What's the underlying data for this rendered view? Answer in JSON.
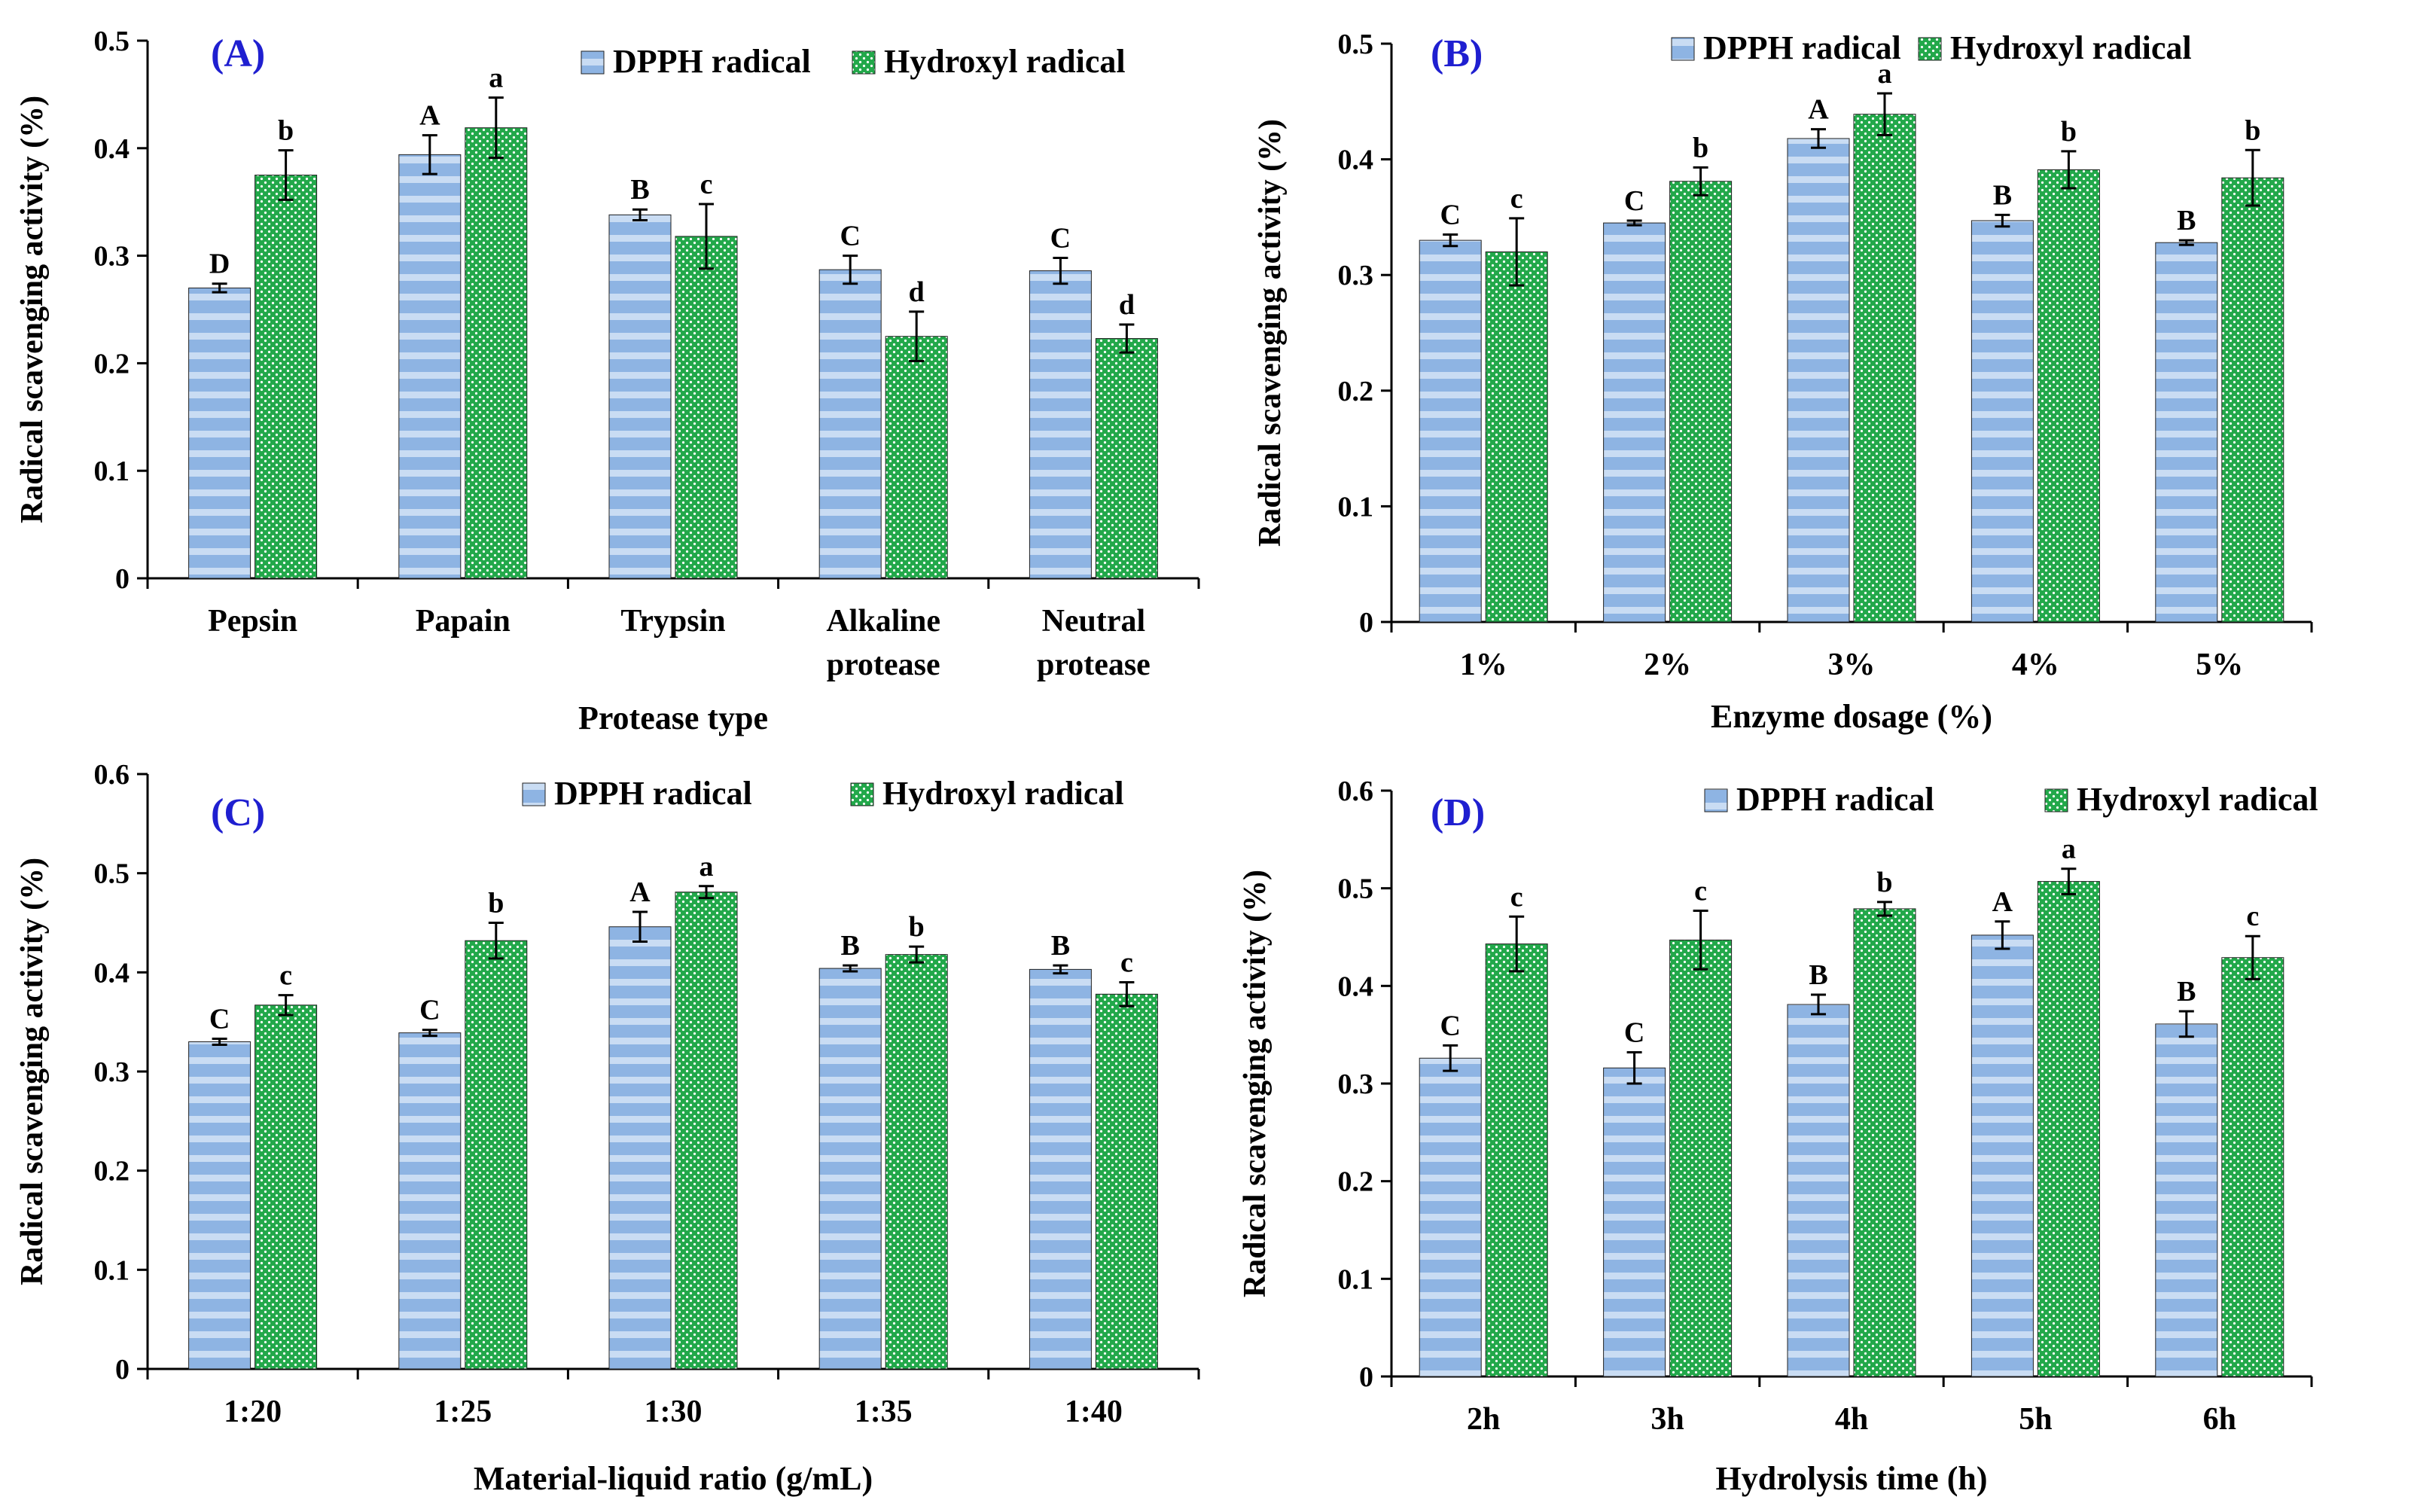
{
  "legend": {
    "dpph": "DPPH radical",
    "hydroxyl": "Hydroxyl radical"
  },
  "colors": {
    "dpph": "#8eb4e3",
    "dpph_stripe": "#c9dcf3",
    "hydroxyl": "#22a84a",
    "hydroxyl_dot": "#ffffff",
    "panel_label": "#1f1fd0"
  },
  "chart_data": [
    {
      "type": "bar",
      "panel": "(A)",
      "xlabel": "Protease type",
      "ylabel": "Radical scavenging activity (%)",
      "ylim": [
        0,
        0.5
      ],
      "ytick_step": 0.1,
      "categories": [
        [
          "Pepsin"
        ],
        [
          "Papain"
        ],
        [
          "Trypsin"
        ],
        [
          "Alkaline",
          "protease"
        ],
        [
          "Neutral",
          "protease"
        ]
      ],
      "series": [
        {
          "name": "DPPH radical",
          "values": [
            0.27,
            0.394,
            0.338,
            0.287,
            0.286
          ],
          "errors": [
            0.004,
            0.018,
            0.005,
            0.013,
            0.012
          ],
          "letters": [
            "D",
            "A",
            "B",
            "C",
            "C"
          ]
        },
        {
          "name": "Hydroxyl radical",
          "values": [
            0.375,
            0.419,
            0.318,
            0.225,
            0.223
          ],
          "errors": [
            0.023,
            0.028,
            0.03,
            0.023,
            0.013
          ],
          "letters": [
            "b",
            "a",
            "c",
            "d",
            "d"
          ]
        }
      ]
    },
    {
      "type": "bar",
      "panel": "(B)",
      "xlabel": "Enzyme dosage (%)",
      "ylabel": "Radical scavenging activity (%)",
      "ylim": [
        0,
        0.5
      ],
      "ytick_step": 0.1,
      "categories": [
        [
          "1%"
        ],
        [
          "2%"
        ],
        [
          "3%"
        ],
        [
          "4%"
        ],
        [
          "5%"
        ]
      ],
      "series": [
        {
          "name": "DPPH radical",
          "values": [
            0.33,
            0.345,
            0.418,
            0.347,
            0.328
          ],
          "errors": [
            0.005,
            0.002,
            0.008,
            0.005,
            0.002
          ],
          "letters": [
            "C",
            "C",
            "A",
            "B",
            "B"
          ]
        },
        {
          "name": "Hydroxyl radical",
          "values": [
            0.32,
            0.381,
            0.439,
            0.391,
            0.384
          ],
          "errors": [
            0.029,
            0.012,
            0.018,
            0.016,
            0.024
          ],
          "letters": [
            "c",
            "b",
            "a",
            "b",
            "b"
          ]
        }
      ]
    },
    {
      "type": "bar",
      "panel": "(C)",
      "xlabel": "Material-liquid ratio (g/mL)",
      "ylabel": "Radical scavenging activity (%)",
      "ylim": [
        0,
        0.6
      ],
      "ytick_step": 0.1,
      "categories": [
        [
          "1:20"
        ],
        [
          "1:25"
        ],
        [
          "1:30"
        ],
        [
          "1:35"
        ],
        [
          "1:40"
        ]
      ],
      "series": [
        {
          "name": "DPPH radical",
          "values": [
            0.33,
            0.339,
            0.446,
            0.404,
            0.403
          ],
          "errors": [
            0.003,
            0.003,
            0.015,
            0.003,
            0.004
          ],
          "letters": [
            "C",
            "C",
            "A",
            "B",
            "B"
          ]
        },
        {
          "name": "Hydroxyl radical",
          "values": [
            0.367,
            0.432,
            0.481,
            0.418,
            0.378
          ],
          "errors": [
            0.01,
            0.018,
            0.006,
            0.008,
            0.012
          ],
          "letters": [
            "c",
            "b",
            "a",
            "b",
            "c"
          ]
        }
      ]
    },
    {
      "type": "bar",
      "panel": "(D)",
      "xlabel": "Hydrolysis time (h)",
      "ylabel": "Radical scavenging activity (%)",
      "ylim": [
        0,
        0.6
      ],
      "ytick_step": 0.1,
      "categories": [
        [
          "2h"
        ],
        [
          "3h"
        ],
        [
          "4h"
        ],
        [
          "5h"
        ],
        [
          "6h"
        ]
      ],
      "series": [
        {
          "name": "DPPH radical",
          "values": [
            0.326,
            0.316,
            0.381,
            0.452,
            0.361
          ],
          "errors": [
            0.013,
            0.016,
            0.01,
            0.014,
            0.013
          ],
          "letters": [
            "C",
            "C",
            "B",
            "A",
            "B"
          ]
        },
        {
          "name": "Hydroxyl radical",
          "values": [
            0.443,
            0.447,
            0.479,
            0.507,
            0.429
          ],
          "errors": [
            0.028,
            0.03,
            0.007,
            0.013,
            0.022
          ],
          "letters": [
            "c",
            "c",
            "b",
            "a",
            "c"
          ]
        }
      ]
    }
  ]
}
